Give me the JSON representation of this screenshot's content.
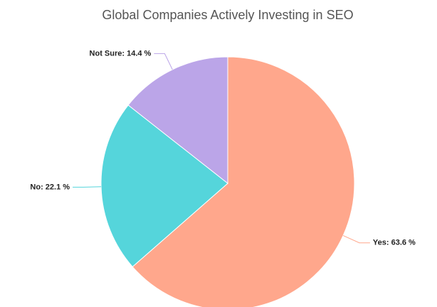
{
  "chart_data": {
    "type": "pie",
    "title": "Global Companies Actively Investing in SEO",
    "categories": [
      "Yes",
      "No",
      "Not Sure"
    ],
    "values": [
      63.6,
      22.1,
      14.4
    ],
    "value_labels": [
      "Yes: 63.6 %",
      "No: 22.1 %",
      "Not Sure: 14.4 %"
    ],
    "colors": [
      "#ffa78c",
      "#55d5db",
      "#bba5e8"
    ]
  }
}
